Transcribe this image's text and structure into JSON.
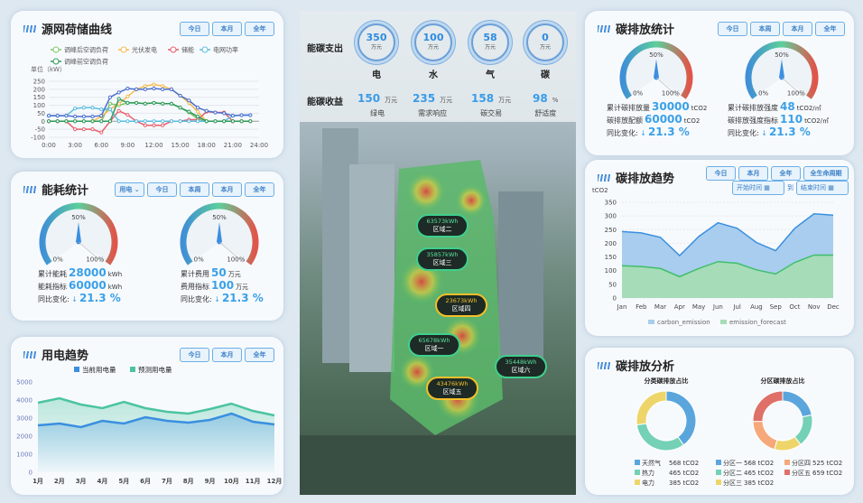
{
  "source_grid": {
    "title": "源网荷储曲线",
    "buttons": [
      "今日",
      "本月",
      "全年"
    ],
    "unit": "单位（kW）",
    "chart_data": {
      "type": "line",
      "xlabel": "",
      "ylabel": "单位（kW）",
      "ylim": [
        -100,
        250
      ],
      "yticks": [
        -100,
        -50,
        0,
        50,
        100,
        150,
        200,
        250
      ],
      "xticks": [
        "0:00",
        "3:00",
        "6:00",
        "9:00",
        "12:00",
        "15:00",
        "18:00",
        "21:00",
        "24:00"
      ],
      "x": [
        0,
        1,
        2,
        3,
        4,
        5,
        6,
        7,
        8,
        9,
        10,
        11,
        12,
        13,
        14,
        15,
        16,
        17,
        18,
        19,
        20,
        21,
        22,
        23
      ],
      "legend": "top",
      "grid": true,
      "series": [
        {
          "name": "调峰后空调负荷",
          "color": "#7cc96b",
          "values": [
            0,
            0,
            0,
            0,
            0,
            0,
            0,
            110,
            100,
            115,
            115,
            110,
            115,
            110,
            110,
            85,
            55,
            15,
            0,
            0,
            0,
            0,
            0,
            0
          ]
        },
        {
          "name": "光伏发电",
          "color": "#f5b94a",
          "values": [
            0,
            0,
            0,
            0,
            0,
            0,
            30,
            75,
            110,
            155,
            200,
            220,
            230,
            220,
            200,
            160,
            115,
            60,
            0,
            0,
            0,
            0,
            0,
            0
          ]
        },
        {
          "name": "储能",
          "color": "#e8606a",
          "values": [
            0,
            0,
            0,
            -50,
            -50,
            -50,
            -70,
            0,
            65,
            40,
            0,
            -25,
            -25,
            -25,
            0,
            0,
            10,
            10,
            60,
            55,
            55,
            0,
            0,
            0
          ]
        },
        {
          "name": "电网功率",
          "color": "#5bbde0",
          "values": [
            35,
            35,
            35,
            80,
            85,
            85,
            75,
            75,
            0,
            0,
            0,
            0,
            0,
            0,
            0,
            0,
            0,
            0,
            0,
            0,
            0,
            35,
            38,
            38
          ]
        },
        {
          "name": "调峰前空调负荷",
          "color": "#2e9a5a",
          "values": [
            0,
            0,
            0,
            0,
            0,
            0,
            0,
            0,
            140,
            115,
            115,
            110,
            115,
            110,
            110,
            85,
            60,
            30,
            0,
            0,
            0,
            0,
            0,
            0
          ]
        },
        {
          "color": "#4a6fcf",
          "values": [
            35,
            35,
            35,
            30,
            30,
            30,
            35,
            150,
            180,
            205,
            200,
            200,
            205,
            200,
            200,
            160,
            130,
            85,
            65,
            55,
            50,
            35,
            38,
            38
          ]
        }
      ]
    }
  },
  "energy": {
    "title": "能耗统计",
    "select": "用电",
    "buttons": [
      "今日",
      "本周",
      "本月",
      "全年"
    ],
    "gauges": [
      {
        "level": 0.5,
        "labels": [
          "0%",
          "50%",
          "100%"
        ],
        "rows": [
          {
            "label": "累计能耗",
            "value": "28000",
            "unit": "kWh"
          },
          {
            "label": "能耗指标",
            "value": "60000",
            "unit": "kWh"
          }
        ],
        "change_label": "同比变化:",
        "change": "21.3 %"
      },
      {
        "level": 0.5,
        "labels": [
          "0%",
          "50%",
          "100%"
        ],
        "rows": [
          {
            "label": "累计费用",
            "value": "50",
            "unit": "万元"
          },
          {
            "label": "费用指标",
            "value": "100",
            "unit": "万元"
          }
        ],
        "change_label": "同比变化:",
        "change": "21.3 %"
      }
    ]
  },
  "power_trend": {
    "title": "用电趋势",
    "buttons": [
      "今日",
      "本月",
      "全年"
    ],
    "chart_data": {
      "type": "area",
      "categories": [
        "1月",
        "2月",
        "3月",
        "4月",
        "5月",
        "6月",
        "7月",
        "8月",
        "9月",
        "10月",
        "11月",
        "12月"
      ],
      "ylim": [
        0,
        5000
      ],
      "yticks": [
        0,
        1000,
        2000,
        3000,
        4000,
        5000
      ],
      "legend": "top",
      "series": [
        {
          "name": "当前用电量",
          "color": "#3a8fe0",
          "values": [
            2600,
            2700,
            2500,
            2850,
            2700,
            3050,
            2850,
            2750,
            2900,
            3250,
            2800,
            2650
          ]
        },
        {
          "name": "预测用电量",
          "color": "#4cc4a0",
          "values": [
            3850,
            4100,
            3750,
            3550,
            3900,
            3550,
            3350,
            3250,
            3500,
            3800,
            3400,
            3150
          ]
        }
      ]
    }
  },
  "center": {
    "expense_label": "能碳支出",
    "income_label": "能碳收益",
    "expenses": [
      {
        "value": "350",
        "unit": "万元",
        "name": "电"
      },
      {
        "value": "100",
        "unit": "万元",
        "name": "水"
      },
      {
        "value": "58",
        "unit": "万元",
        "name": "气"
      },
      {
        "value": "0",
        "unit": "万元",
        "name": "碳"
      }
    ],
    "incomes": [
      {
        "value": "150",
        "unit": "万元",
        "name": "绿电"
      },
      {
        "value": "235",
        "unit": "万元",
        "name": "需求响应"
      },
      {
        "value": "158",
        "unit": "万元",
        "name": "碳交易"
      },
      {
        "value": "98",
        "unit": "%",
        "name": "舒适度"
      }
    ],
    "regions": [
      {
        "kwh": "63573kWh",
        "name": "区域二",
        "warn": false
      },
      {
        "kwh": "35857kWh",
        "name": "区域三",
        "warn": false
      },
      {
        "kwh": "23673kWh",
        "name": "区域四",
        "warn": true
      },
      {
        "kwh": "65678kWh",
        "name": "区域一",
        "warn": false
      },
      {
        "kwh": "35448kWh",
        "name": "区域六",
        "warn": false
      },
      {
        "kwh": "43476kWh",
        "name": "区域五",
        "warn": true
      }
    ]
  },
  "carbon_stats": {
    "title": "碳排放统计",
    "buttons": [
      "今日",
      "本周",
      "本月",
      "全年"
    ],
    "gauges": [
      {
        "level": 0.5,
        "labels": [
          "0%",
          "50%",
          "100%"
        ],
        "rows": [
          {
            "label": "累计碳排放量",
            "value": "30000",
            "unit": "tCO2"
          },
          {
            "label": "碳排放配额",
            "value": "60000",
            "unit": "tCO2"
          }
        ],
        "change_label": "同比变化:",
        "change": "21.3 %"
      },
      {
        "level": 0.5,
        "labels": [
          "0%",
          "50%",
          "100%"
        ],
        "rows": [
          {
            "label": "累计碳排放强度",
            "value": "48",
            "unit": "tCO2/㎡"
          },
          {
            "label": "碳排放强度指标",
            "value": "110",
            "unit": "tCO2/㎡"
          }
        ],
        "change_label": "同比变化:",
        "change": "21.3 %"
      }
    ]
  },
  "carbon_trend": {
    "title": "碳排放趋势",
    "buttons": [
      "今日",
      "本月",
      "全年",
      "全生命周期"
    ],
    "start_placeholder": "开始时间",
    "sep": "到",
    "end_placeholder": "结束时间",
    "chart_data": {
      "type": "area",
      "ylabel": "tCO2",
      "categories": [
        "Jan",
        "Feb",
        "Mar",
        "Apr",
        "May",
        "Jun",
        "Jul",
        "Aug",
        "Sep",
        "Oct",
        "Nov",
        "Dec"
      ],
      "ylim": [
        0,
        350
      ],
      "yticks": [
        0,
        50,
        100,
        150,
        200,
        250,
        300,
        350
      ],
      "legend": "bottom",
      "grid": true,
      "series": [
        {
          "name": "carbon_emission",
          "color": "#3a8fe0",
          "fill": "#a9cdee",
          "values": [
            243,
            238,
            222,
            155,
            225,
            275,
            255,
            203,
            173,
            255,
            308,
            303
          ]
        },
        {
          "name": "emission_forecast",
          "color": "#3fbf6a",
          "fill": "#a6dcb8",
          "values": [
            118,
            115,
            108,
            78,
            108,
            133,
            127,
            103,
            88,
            130,
            157,
            157
          ]
        }
      ]
    }
  },
  "carbon_analysis": {
    "title": "碳排放分析",
    "chart_data": [
      {
        "type": "pie",
        "title": "分类碳排放占比",
        "slices": [
          {
            "name": "天然气",
            "value": 568,
            "color": "#5aa6dc"
          },
          {
            "name": "热力",
            "value": 465,
            "color": "#74d1b6"
          },
          {
            "name": "电力",
            "value": 385,
            "color": "#eed56a"
          }
        ],
        "unit": "tCO2"
      },
      {
        "type": "pie",
        "title": "分区碳排放占比",
        "slices": [
          {
            "name": "分区一",
            "value": 568,
            "color": "#5aa6dc"
          },
          {
            "name": "分区二",
            "value": 465,
            "color": "#74d1b6"
          },
          {
            "name": "分区三",
            "value": 385,
            "color": "#eed56a"
          },
          {
            "name": "分区四",
            "value": 525,
            "color": "#f5a97a"
          },
          {
            "name": "分区五",
            "value": 659,
            "color": "#df7068"
          }
        ],
        "unit": "tCO2"
      }
    ]
  }
}
